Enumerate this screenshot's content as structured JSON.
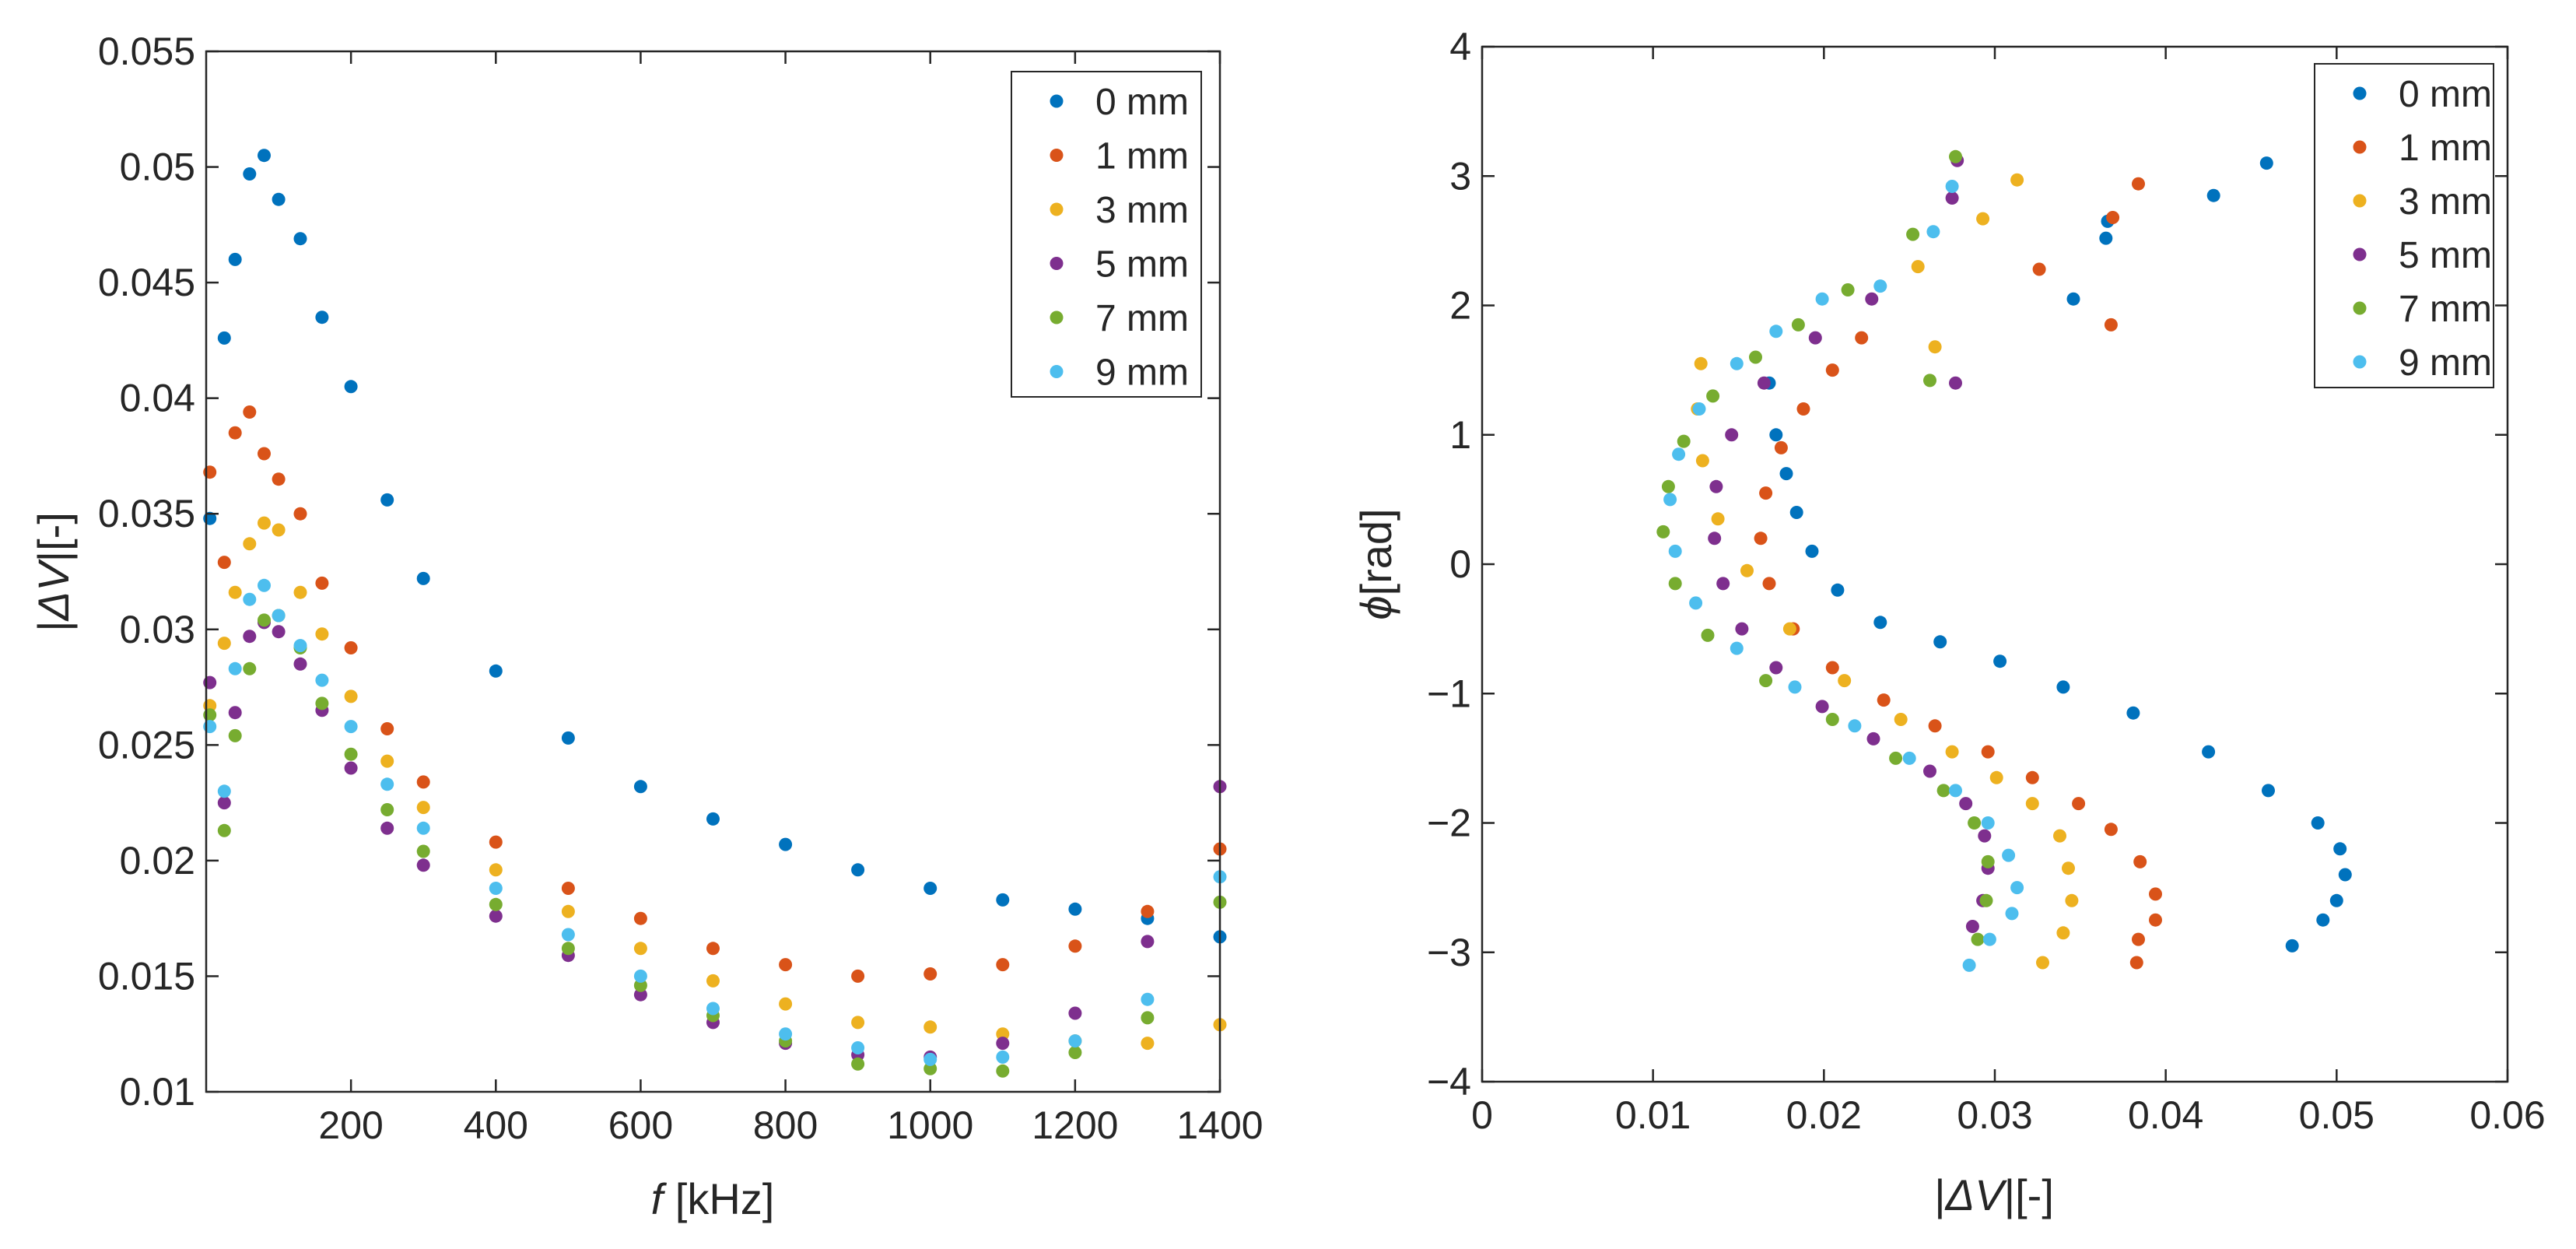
{
  "figure": {
    "panels": 2
  },
  "chart_data": [
    {
      "type": "scatter",
      "title": "",
      "xlabel_var": "f",
      "xlabel_unit": " [kHz]",
      "ylabel_bar_left": "|",
      "ylabel_var": "ΔV",
      "ylabel_bar_right": "|[-]",
      "xlim": [
        0,
        1400
      ],
      "ylim": [
        0.01,
        0.055
      ],
      "xticks": [
        200,
        400,
        600,
        800,
        1000,
        1200,
        1400
      ],
      "yticks": [
        0.01,
        0.015,
        0.02,
        0.025,
        0.03,
        0.035,
        0.04,
        0.045,
        0.05,
        0.055
      ],
      "xtick_labels": [
        "200",
        "400",
        "600",
        "800",
        "1000",
        "1200",
        "1400"
      ],
      "ytick_labels": [
        "0.01",
        "0.015",
        "0.02",
        "0.025",
        "0.03",
        "0.035",
        "0.04",
        "0.045",
        "0.05",
        "0.055"
      ],
      "grid": false,
      "legend_position": "top-right",
      "series": [
        {
          "name": "0 mm",
          "color": "#0072BD",
          "x": [
            5,
            25,
            40,
            60,
            80,
            100,
            130,
            160,
            200,
            250,
            300,
            400,
            500,
            600,
            700,
            800,
            900,
            1000,
            1100,
            1200,
            1300,
            1400
          ],
          "y": [
            0.0348,
            0.0426,
            0.046,
            0.0497,
            0.0505,
            0.0486,
            0.0469,
            0.0435,
            0.0405,
            0.0356,
            0.0322,
            0.0282,
            0.0253,
            0.0232,
            0.0218,
            0.0207,
            0.0196,
            0.0188,
            0.0183,
            0.0179,
            0.0175,
            0.0167
          ]
        },
        {
          "name": "1 mm",
          "color": "#D95319",
          "x": [
            5,
            25,
            40,
            60,
            80,
            100,
            130,
            160,
            200,
            250,
            300,
            400,
            500,
            600,
            700,
            800,
            900,
            1000,
            1100,
            1200,
            1300,
            1400
          ],
          "y": [
            0.0368,
            0.0329,
            0.0385,
            0.0394,
            0.0376,
            0.0365,
            0.035,
            0.032,
            0.0292,
            0.0257,
            0.0234,
            0.0208,
            0.0188,
            0.0175,
            0.0162,
            0.0155,
            0.015,
            0.0151,
            0.0155,
            0.0163,
            0.0178,
            0.0205
          ]
        },
        {
          "name": "3 mm",
          "color": "#EDB120",
          "x": [
            5,
            25,
            40,
            60,
            80,
            100,
            130,
            160,
            200,
            250,
            300,
            400,
            500,
            600,
            700,
            800,
            900,
            1000,
            1100,
            1200,
            1300,
            1400
          ],
          "y": [
            0.0267,
            0.0294,
            0.0316,
            0.0337,
            0.0346,
            0.0343,
            0.0316,
            0.0298,
            0.0271,
            0.0243,
            0.0223,
            0.0196,
            0.0178,
            0.0162,
            0.0148,
            0.0138,
            0.013,
            0.0128,
            0.0125,
            0.0122,
            0.0121,
            0.0129
          ]
        },
        {
          "name": "5 mm",
          "color": "#7E2F8E",
          "x": [
            5,
            25,
            40,
            60,
            80,
            100,
            130,
            160,
            200,
            250,
            300,
            400,
            500,
            600,
            700,
            800,
            900,
            1000,
            1100,
            1200,
            1300,
            1400
          ],
          "y": [
            0.0277,
            0.0225,
            0.0264,
            0.0297,
            0.0303,
            0.0299,
            0.0285,
            0.0265,
            0.024,
            0.0214,
            0.0198,
            0.0176,
            0.0159,
            0.0142,
            0.013,
            0.0121,
            0.0116,
            0.0115,
            0.0121,
            0.0134,
            0.0165,
            0.0232
          ]
        },
        {
          "name": "7 mm",
          "color": "#77AC30",
          "x": [
            5,
            25,
            40,
            60,
            80,
            100,
            130,
            160,
            200,
            250,
            300,
            400,
            500,
            600,
            700,
            800,
            900,
            1000,
            1100,
            1200,
            1300,
            1400
          ],
          "y": [
            0.0263,
            0.0213,
            0.0254,
            0.0283,
            0.0304,
            0.0306,
            0.0292,
            0.0268,
            0.0246,
            0.0222,
            0.0204,
            0.0181,
            0.0162,
            0.0146,
            0.0133,
            0.0122,
            0.0112,
            0.011,
            0.0109,
            0.0117,
            0.0132,
            0.0182
          ]
        },
        {
          "name": "9 mm",
          "color": "#4DBEEE",
          "x": [
            5,
            25,
            40,
            60,
            80,
            100,
            130,
            160,
            200,
            250,
            300,
            400,
            500,
            600,
            700,
            800,
            900,
            1000,
            1100,
            1200,
            1300,
            1400
          ],
          "y": [
            0.0258,
            0.023,
            0.0283,
            0.0313,
            0.0319,
            0.0306,
            0.0293,
            0.0278,
            0.0258,
            0.0233,
            0.0214,
            0.0188,
            0.0168,
            0.015,
            0.0136,
            0.0125,
            0.0119,
            0.0114,
            0.0115,
            0.0122,
            0.014,
            0.0193
          ]
        }
      ]
    },
    {
      "type": "scatter",
      "title": "",
      "xlabel_bar_left": "|",
      "xlabel_var": "ΔV",
      "xlabel_bar_right": "|[-]",
      "ylabel_var": "ϕ",
      "ylabel_unit": "[rad]",
      "xlim": [
        0,
        0.06
      ],
      "ylim": [
        -4,
        4
      ],
      "xticks": [
        0,
        0.01,
        0.02,
        0.03,
        0.04,
        0.05,
        0.06
      ],
      "yticks": [
        -4,
        -3,
        -2,
        -1,
        0,
        1,
        2,
        3,
        4
      ],
      "xtick_labels": [
        "0",
        "0.01",
        "0.02",
        "0.03",
        "0.04",
        "0.05",
        "0.06"
      ],
      "ytick_labels": [
        "−4",
        "−3",
        "−2",
        "−1",
        "0",
        "1",
        "2",
        "3",
        "4"
      ],
      "grid": false,
      "legend_position": "top-right",
      "series": [
        {
          "name": "0 mm",
          "color": "#0072BD",
          "x": [
            0.0168,
            0.0172,
            0.0178,
            0.0184,
            0.0193,
            0.0208,
            0.0233,
            0.0268,
            0.0303,
            0.034,
            0.0381,
            0.0425,
            0.046,
            0.0489,
            0.0502,
            0.0505,
            0.05,
            0.0492,
            0.0474,
            0.0346,
            0.0365,
            0.0428,
            0.0459,
            0.0366
          ],
          "y": [
            1.4,
            1.0,
            0.7,
            0.4,
            0.1,
            -0.2,
            -0.45,
            -0.6,
            -0.75,
            -0.95,
            -1.15,
            -1.45,
            -1.75,
            -2.0,
            -2.2,
            -2.4,
            -2.6,
            -2.75,
            -2.95,
            2.05,
            2.52,
            2.85,
            3.1,
            2.65
          ]
        },
        {
          "name": "1 mm",
          "color": "#D95319",
          "x": [
            0.0222,
            0.0205,
            0.0188,
            0.0175,
            0.0166,
            0.0163,
            0.0168,
            0.0182,
            0.0205,
            0.0235,
            0.0265,
            0.0296,
            0.0322,
            0.0349,
            0.0368,
            0.0385,
            0.0394,
            0.0394,
            0.0384,
            0.0383,
            0.0326,
            0.0369,
            0.0384,
            0.0368
          ],
          "y": [
            1.75,
            1.5,
            1.2,
            0.9,
            0.55,
            0.2,
            -0.15,
            -0.5,
            -0.8,
            -1.05,
            -1.25,
            -1.45,
            -1.65,
            -1.85,
            -2.05,
            -2.3,
            -2.55,
            -2.75,
            -2.9,
            -3.08,
            2.28,
            2.68,
            2.94,
            1.85
          ]
        },
        {
          "name": "3 mm",
          "color": "#EDB120",
          "x": [
            0.0128,
            0.0126,
            0.0129,
            0.0138,
            0.0155,
            0.018,
            0.0212,
            0.0245,
            0.0275,
            0.0301,
            0.0322,
            0.0338,
            0.0343,
            0.0345,
            0.034,
            0.0328,
            0.0255,
            0.0265,
            0.0293,
            0.0313
          ],
          "y": [
            1.55,
            1.2,
            0.8,
            0.35,
            -0.05,
            -0.5,
            -0.9,
            -1.2,
            -1.45,
            -1.65,
            -1.85,
            -2.1,
            -2.35,
            -2.6,
            -2.85,
            -3.08,
            2.3,
            1.68,
            2.67,
            2.97
          ]
        },
        {
          "name": "5 mm",
          "color": "#7E2F8E",
          "x": [
            0.0228,
            0.0195,
            0.0165,
            0.0146,
            0.0137,
            0.0136,
            0.0141,
            0.0152,
            0.0172,
            0.0199,
            0.0229,
            0.0262,
            0.0283,
            0.0294,
            0.0296,
            0.0293,
            0.0287,
            0.0275,
            0.0278,
            0.0277
          ],
          "y": [
            2.05,
            1.75,
            1.4,
            1.0,
            0.6,
            0.2,
            -0.15,
            -0.5,
            -0.8,
            -1.1,
            -1.35,
            -1.6,
            -1.85,
            -2.1,
            -2.35,
            -2.6,
            -2.8,
            2.83,
            3.12,
            1.4
          ]
        },
        {
          "name": "7 mm",
          "color": "#77AC30",
          "x": [
            0.0214,
            0.0185,
            0.016,
            0.0135,
            0.0118,
            0.0109,
            0.0106,
            0.0113,
            0.0132,
            0.0166,
            0.0205,
            0.0242,
            0.027,
            0.0288,
            0.0296,
            0.0295,
            0.029,
            0.0252,
            0.0277,
            0.0262
          ],
          "y": [
            2.12,
            1.85,
            1.6,
            1.3,
            0.95,
            0.6,
            0.25,
            -0.15,
            -0.55,
            -0.9,
            -1.2,
            -1.5,
            -1.75,
            -2.0,
            -2.3,
            -2.6,
            -2.9,
            2.55,
            3.15,
            1.42
          ]
        },
        {
          "name": "9 mm",
          "color": "#4DBEEE",
          "x": [
            0.0199,
            0.0172,
            0.0149,
            0.0127,
            0.0115,
            0.011,
            0.0113,
            0.0125,
            0.0149,
            0.0183,
            0.0218,
            0.025,
            0.0277,
            0.0296,
            0.0308,
            0.0313,
            0.031,
            0.0297,
            0.0285,
            0.0233,
            0.0264,
            0.0275
          ],
          "y": [
            2.05,
            1.8,
            1.55,
            1.2,
            0.85,
            0.5,
            0.1,
            -0.3,
            -0.65,
            -0.95,
            -1.25,
            -1.5,
            -1.75,
            -2.0,
            -2.25,
            -2.5,
            -2.7,
            -2.9,
            -3.1,
            2.15,
            2.57,
            2.92
          ]
        }
      ]
    }
  ]
}
